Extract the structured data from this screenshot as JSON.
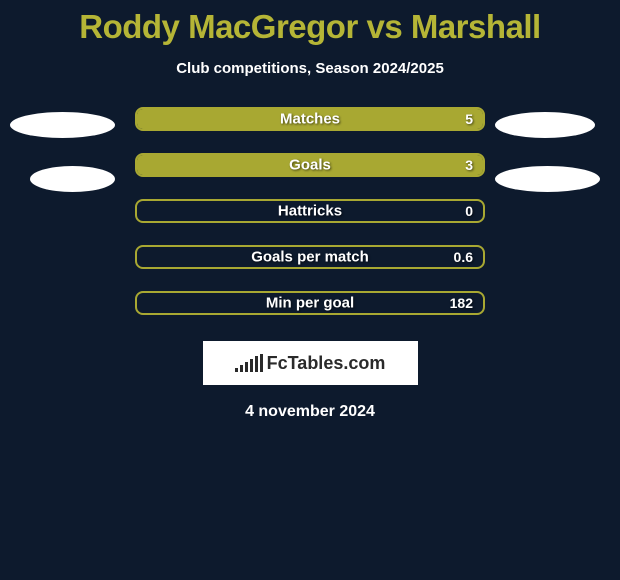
{
  "title": "Roddy MacGregor vs Marshall",
  "subtitle": "Club competitions, Season 2024/2025",
  "accent_color": "#b5b536",
  "stats": [
    {
      "label": "Matches",
      "value": "5",
      "fill_pct": 100,
      "border_color": "#a8a832",
      "fill_color": "#a8a832"
    },
    {
      "label": "Goals",
      "value": "3",
      "fill_pct": 100,
      "border_color": "#a8a832",
      "fill_color": "#a8a832"
    },
    {
      "label": "Hattricks",
      "value": "0",
      "fill_pct": 0,
      "border_color": "#a8a832",
      "fill_color": "#a8a832"
    },
    {
      "label": "Goals per match",
      "value": "0.6",
      "fill_pct": 0,
      "border_color": "#a8a832",
      "fill_color": "#a8a832"
    },
    {
      "label": "Min per goal",
      "value": "182",
      "fill_pct": 0,
      "border_color": "#a8a832",
      "fill_color": "#a8a832"
    }
  ],
  "logo_text": "FcTables.com",
  "date": "4 november 2024",
  "bg_color": "#0d1a2d"
}
